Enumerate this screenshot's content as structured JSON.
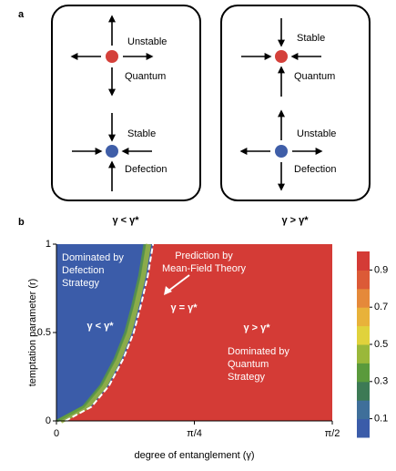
{
  "panel_a": {
    "label": "a",
    "boxes": [
      {
        "top_label": "Unstable",
        "top_node": "Quantum",
        "bottom_label": "Stable",
        "bottom_node": "Defection",
        "caption": "γ < γ*"
      },
      {
        "top_label": "Stable",
        "top_node": "Quantum",
        "bottom_label": "Unstable",
        "bottom_node": "Defection",
        "caption": "γ > γ*"
      }
    ]
  },
  "chart_data": {
    "type": "heatmap",
    "label": "b",
    "x_label": "degree of entanglement (γ)",
    "y_label": "temptation parameter (r)",
    "xlim": [
      0,
      1.5708
    ],
    "xticks": [
      {
        "value": 0,
        "label": "0"
      },
      {
        "value": 0.7854,
        "label": "π/4"
      },
      {
        "value": 1.5708,
        "label": "π/2"
      }
    ],
    "ylim": [
      0,
      1
    ],
    "yticks": [
      0,
      0.5,
      1
    ],
    "boundary": {
      "x": [
        0.05,
        0.2,
        0.3,
        0.38,
        0.44,
        0.48,
        0.52,
        0.55
      ],
      "y": [
        0,
        0.08,
        0.2,
        0.35,
        0.5,
        0.65,
        0.82,
        1
      ]
    },
    "annotations": {
      "defection": [
        "Dominated by",
        "Defection",
        "Strategy"
      ],
      "prediction": [
        "Prediction  by",
        "Mean-Field Theory"
      ],
      "less": "γ < γ*",
      "equal": "γ = γ*",
      "greater": "γ > γ*",
      "quantum": [
        "Dominated by",
        "Quantum",
        "Strategy"
      ]
    },
    "low_color": "#3b5ca9",
    "high_color": "#d43b36",
    "colorbar": {
      "clim": [
        0,
        1
      ],
      "ticks": [
        0.1,
        0.3,
        0.5,
        0.7,
        0.9
      ],
      "colors": [
        "#3b5ca9",
        "#3f6f9a",
        "#3d7a55",
        "#5a9a3c",
        "#9ab83a",
        "#e0d23c",
        "#e8b23a",
        "#e5893a",
        "#dc5a37",
        "#d43b36"
      ]
    }
  }
}
